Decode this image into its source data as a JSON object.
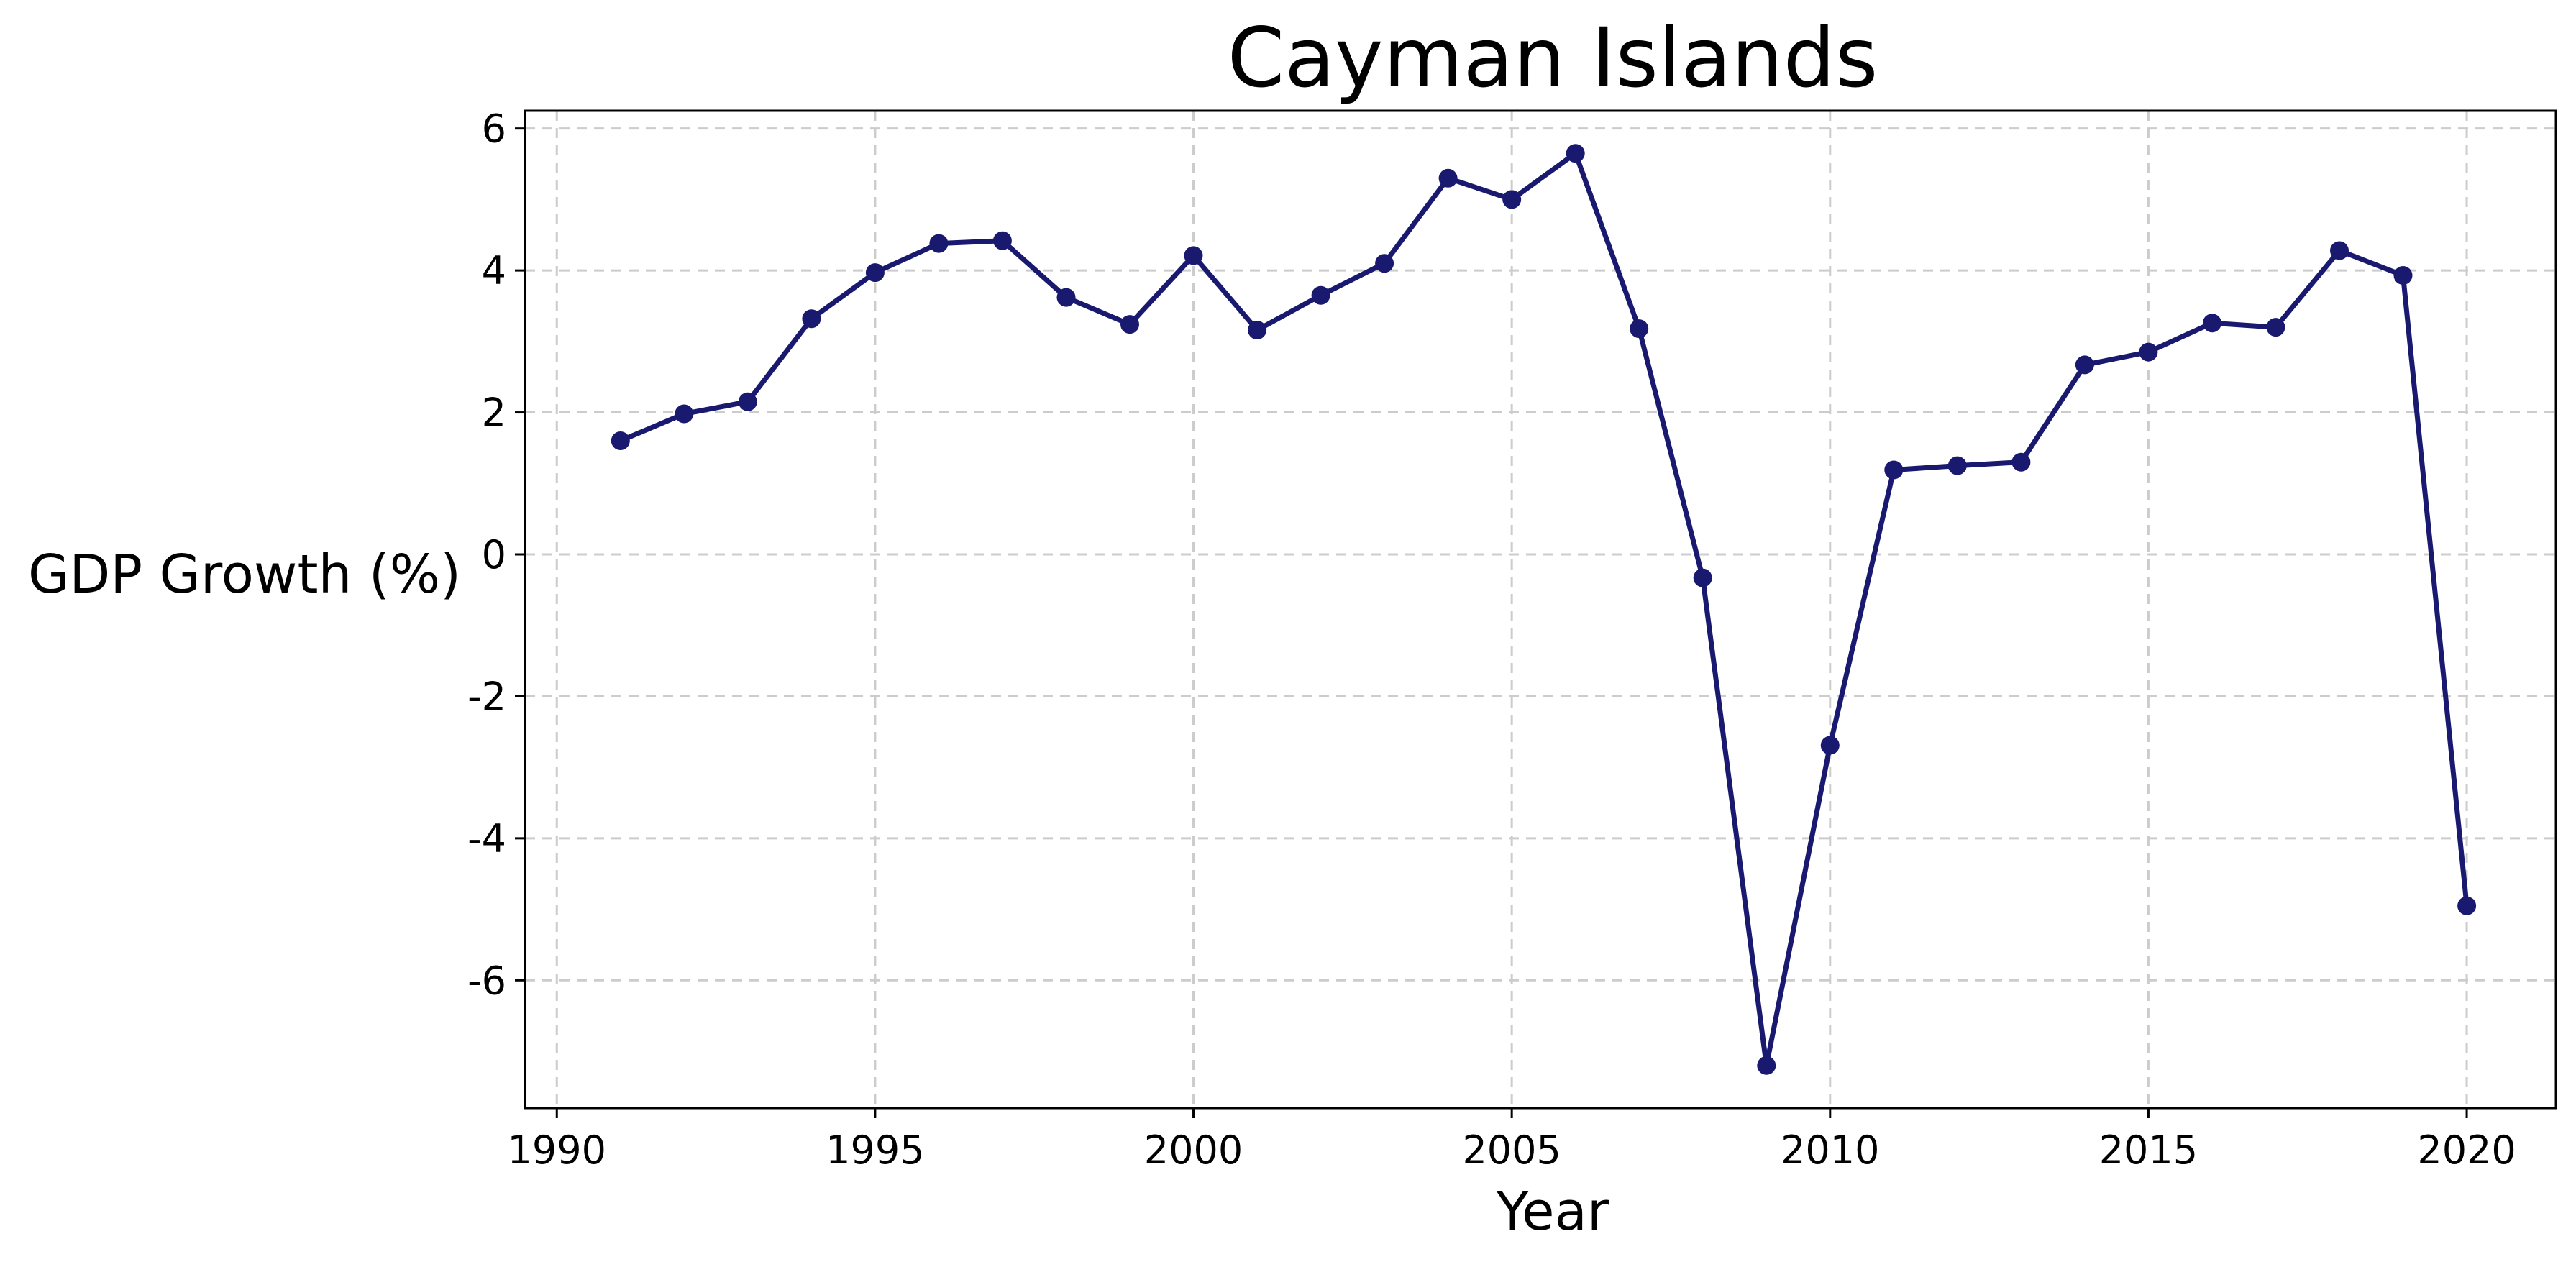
{
  "chart_data": {
    "type": "line",
    "title": "Cayman Islands",
    "xlabel": "Year",
    "ylabel": "GDP Growth (%)",
    "xlim": [
      1989.5,
      2021.4
    ],
    "ylim": [
      -7.8,
      6.25
    ],
    "xticks": [
      1990,
      1995,
      2000,
      2005,
      2010,
      2015,
      2020
    ],
    "yticks": [
      -6,
      -4,
      -2,
      0,
      2,
      4,
      6
    ],
    "grid": true,
    "line_color": "#191970",
    "series": [
      {
        "x": [
          1991,
          1992,
          1993,
          1994,
          1995,
          1996,
          1997,
          1998,
          1999,
          2000,
          2001,
          2002,
          2003,
          2004,
          2005,
          2006,
          2007,
          2008,
          2009,
          2010,
          2011,
          2012,
          2013,
          2014,
          2015,
          2016,
          2017,
          2018,
          2019,
          2020
        ],
        "values": [
          1.6,
          1.98,
          2.15,
          3.32,
          3.97,
          4.38,
          4.42,
          3.62,
          3.24,
          4.21,
          3.16,
          3.65,
          4.1,
          5.3,
          5.0,
          5.65,
          3.18,
          -0.33,
          -7.2,
          -2.69,
          1.19,
          1.25,
          1.3,
          2.67,
          2.85,
          3.26,
          3.2,
          4.28,
          3.93,
          -4.95
        ]
      }
    ]
  }
}
